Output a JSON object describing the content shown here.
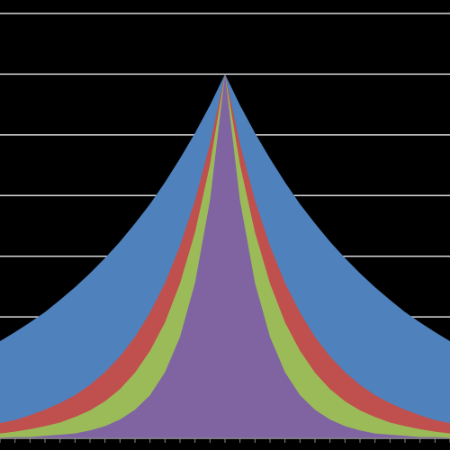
{
  "chart_data": {
    "type": "area",
    "x": [
      -30,
      -28,
      -26,
      -24,
      -22,
      -20,
      -18,
      -16,
      -14,
      -12,
      -10,
      -8,
      -6,
      -4,
      -2,
      0,
      2,
      4,
      6,
      8,
      10,
      12,
      14,
      16,
      18,
      20,
      22,
      24,
      26,
      28,
      30
    ],
    "xlim": [
      -30,
      30
    ],
    "ylim": [
      0,
      7
    ],
    "yticks": [
      0,
      1,
      2,
      3,
      4,
      5,
      6,
      7
    ],
    "grid": true,
    "background": "#000000",
    "grid_color": "#ffffff",
    "series": [
      {
        "color": "#4f81bd",
        "values": [
          1.6,
          1.75,
          1.91,
          2.08,
          2.28,
          2.49,
          2.72,
          2.97,
          3.24,
          3.54,
          3.86,
          4.22,
          4.61,
          5.03,
          5.49,
          6,
          5.49,
          5.03,
          4.61,
          4.22,
          3.86,
          3.54,
          3.24,
          2.97,
          2.72,
          2.49,
          2.28,
          2.08,
          1.91,
          1.75,
          1.6
        ]
      },
      {
        "color": "#c0504d",
        "values": [
          0.25,
          0.3,
          0.38,
          0.47,
          0.58,
          0.71,
          0.88,
          1.09,
          1.35,
          1.67,
          2.07,
          2.56,
          3.17,
          3.92,
          4.85,
          6,
          4.85,
          3.92,
          3.17,
          2.56,
          2.07,
          1.67,
          1.35,
          1.09,
          0.88,
          0.71,
          0.58,
          0.47,
          0.38,
          0.3,
          0.25
        ]
      },
      {
        "color": "#9bbb59",
        "values": [
          0.08,
          0.11,
          0.15,
          0.2,
          0.26,
          0.35,
          0.46,
          0.61,
          0.81,
          1.08,
          1.44,
          1.91,
          2.55,
          3.39,
          4.51,
          6,
          4.51,
          3.39,
          2.55,
          1.91,
          1.44,
          1.08,
          0.81,
          0.61,
          0.46,
          0.35,
          0.26,
          0.2,
          0.15,
          0.11,
          0.08
        ]
      },
      {
        "color": "#8064a2",
        "values": [
          0.01,
          0.02,
          0.02,
          0.04,
          0.06,
          0.08,
          0.13,
          0.2,
          0.31,
          0.47,
          0.71,
          1.09,
          1.67,
          2.56,
          3.92,
          6,
          3.92,
          2.56,
          1.67,
          1.09,
          0.71,
          0.47,
          0.31,
          0.2,
          0.13,
          0.08,
          0.06,
          0.04,
          0.02,
          0.02,
          0.01
        ]
      }
    ]
  }
}
